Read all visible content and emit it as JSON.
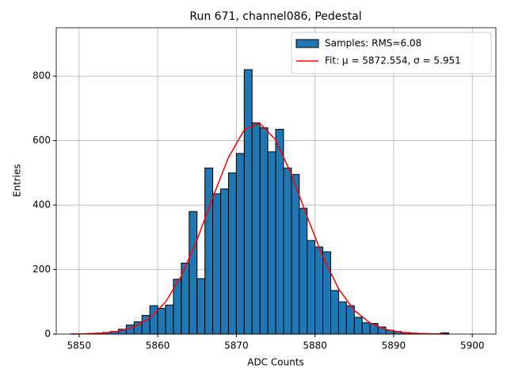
{
  "chart_data": {
    "type": "histogram",
    "title": "Run 671, channel086, Pedestal",
    "xlabel": "ADC Counts",
    "ylabel": "Entries",
    "bins": [
      5849,
      5850,
      5851,
      5852,
      5853,
      5854,
      5855,
      5856,
      5857,
      5858,
      5859,
      5860,
      5861,
      5862,
      5863,
      5864,
      5865,
      5866,
      5867,
      5868,
      5869,
      5870,
      5871,
      5872,
      5873,
      5874,
      5875,
      5876,
      5877,
      5878,
      5879,
      5880,
      5881,
      5882,
      5883,
      5884,
      5885,
      5886,
      5887,
      5888,
      5889,
      5890,
      5891,
      5892,
      5893,
      5894,
      5895,
      5896,
      5897
    ],
    "series": [
      {
        "name": "Samples: RMS=6.08",
        "color": "#1f77b4",
        "values": [
          1,
          1,
          2,
          3,
          5,
          8,
          15,
          28,
          38,
          58,
          88,
          80,
          90,
          170,
          220,
          380,
          172,
          515,
          435,
          450,
          500,
          560,
          820,
          655,
          640,
          565,
          635,
          515,
          495,
          390,
          290,
          270,
          255,
          135,
          100,
          88,
          52,
          35,
          33,
          22,
          12,
          8,
          5,
          3,
          2,
          1,
          1,
          4
        ]
      },
      {
        "name": "Fit: μ = 5872.554, σ = 5.951",
        "color": "#ff0000",
        "type": "line",
        "x": [
          5849,
          5851,
          5853,
          5855,
          5857,
          5859,
          5861,
          5863,
          5865,
          5867,
          5869,
          5871,
          5873,
          5875,
          5877,
          5879,
          5881,
          5883,
          5885,
          5887,
          5889,
          5891,
          5893,
          5895,
          5897
        ],
        "values": [
          0.3,
          0.9,
          3.0,
          8.5,
          21.5,
          48.9,
          99.5,
          180.5,
          292.6,
          423.7,
          548.0,
          633.1,
          653.2,
          602.0,
          495.5,
          364.3,
          239.3,
          140.3,
          73.5,
          34.4,
          14.4,
          5.4,
          1.8,
          0.5,
          0.1
        ]
      }
    ],
    "xlim": [
      5847.1,
      5903.0
    ],
    "ylim": [
      0,
      950
    ],
    "xticks": [
      5850,
      5860,
      5870,
      5880,
      5890,
      5900
    ],
    "yticks": [
      0,
      200,
      400,
      600,
      800
    ],
    "grid": true,
    "legend": "upper right"
  }
}
